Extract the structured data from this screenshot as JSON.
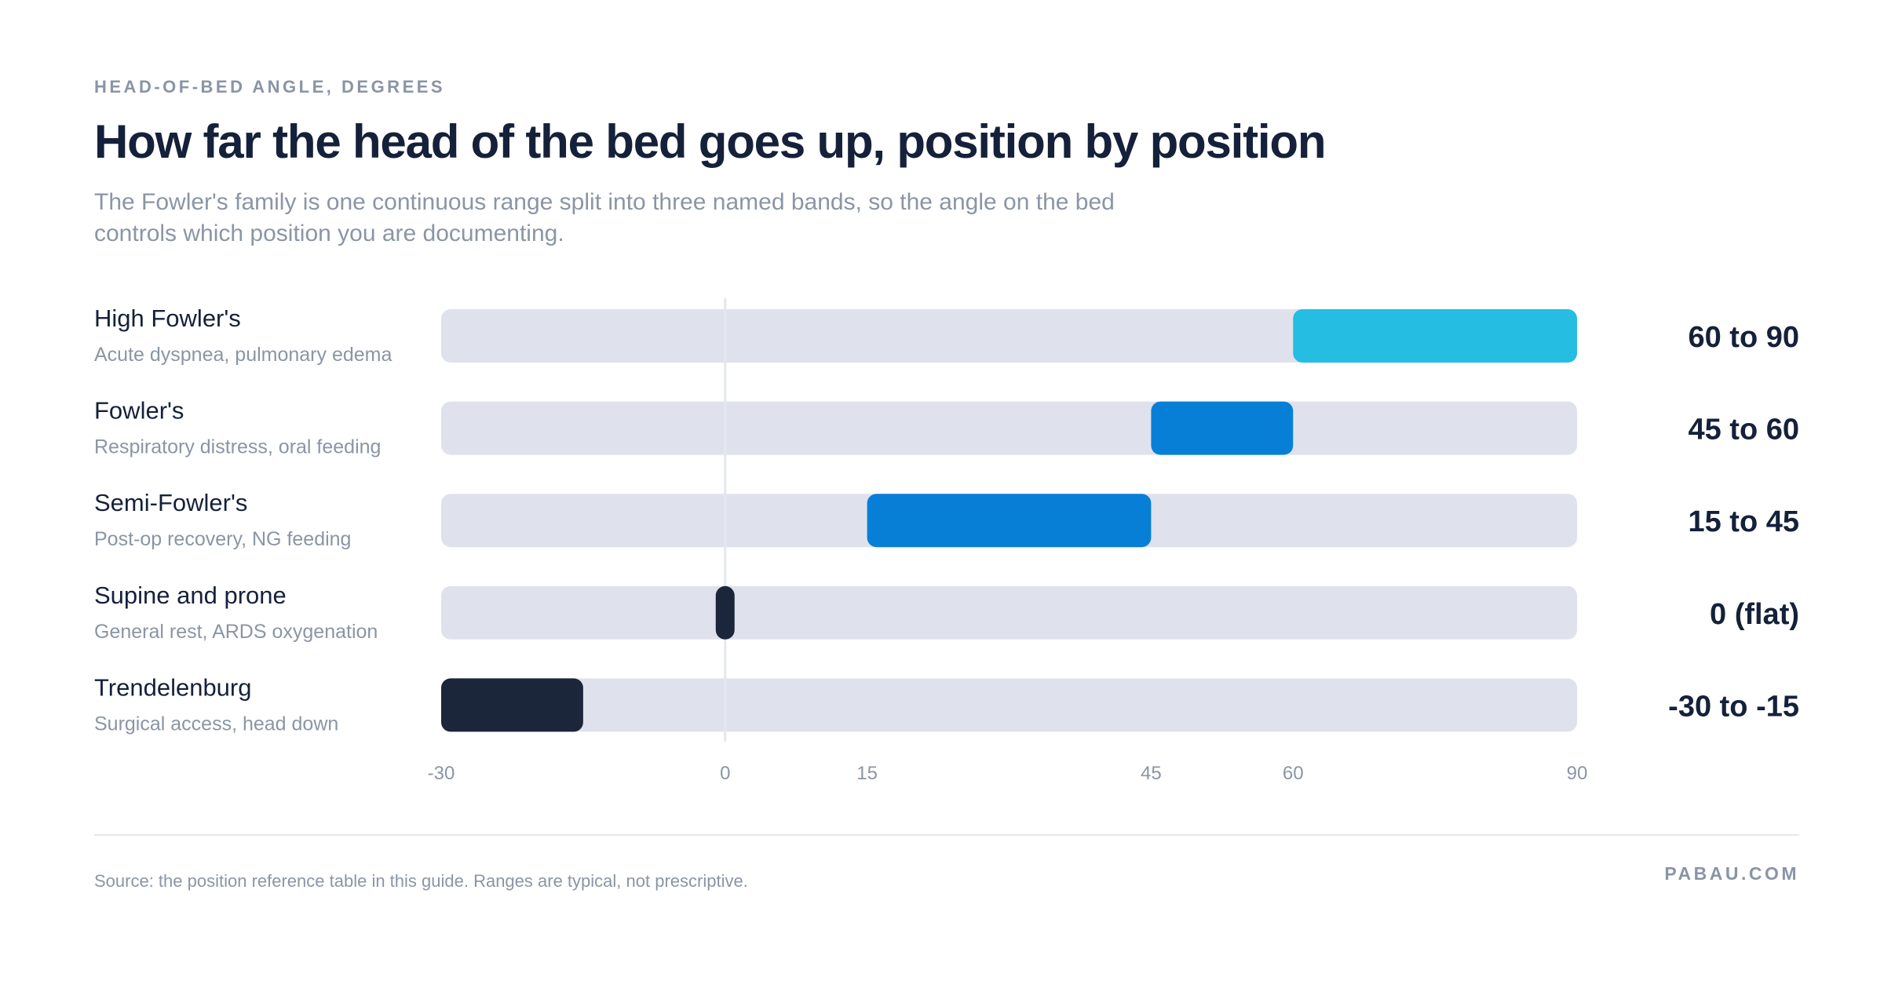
{
  "header": {
    "eyebrow": "HEAD-OF-BED ANGLE, DEGREES",
    "title": "How far the head of the bed goes up, position by position",
    "subtitle": "The Fowler's family is one continuous range split into three named bands, so the angle on the bed controls which position you are documenting."
  },
  "chart_data": {
    "type": "bar",
    "orientation": "horizontal-range",
    "xlim": [
      -30,
      90
    ],
    "x_ticks": [
      -30,
      0,
      15,
      45,
      60,
      90
    ],
    "reference_line": 0,
    "track_color": "#dfe2ec",
    "rows": [
      {
        "name": "High Fowler's",
        "use": "Acute dyspnea, pulmonary edema",
        "range": [
          60,
          90
        ],
        "label": "60 to 90",
        "color": "#25bde2"
      },
      {
        "name": "Fowler's",
        "use": "Respiratory distress, oral feeding",
        "range": [
          45,
          60
        ],
        "label": "45 to 60",
        "color": "#087fd6"
      },
      {
        "name": "Semi-Fowler's",
        "use": "Post-op recovery, NG feeding",
        "range": [
          15,
          45
        ],
        "label": "15 to 45",
        "color": "#087fd6"
      },
      {
        "name": "Supine and prone",
        "use": "General rest, ARDS oxygenation",
        "range": [
          0,
          0
        ],
        "label": "0 (flat)",
        "color": "#1b263b"
      },
      {
        "name": "Trendelenburg",
        "use": "Surgical access, head down",
        "range": [
          -30,
          -15
        ],
        "label": "-30 to -15",
        "color": "#1b263b"
      }
    ]
  },
  "footer": {
    "source": "Source: the position reference table in this guide. Ranges are typical, not prescriptive.",
    "brand": "PABAU.COM"
  }
}
